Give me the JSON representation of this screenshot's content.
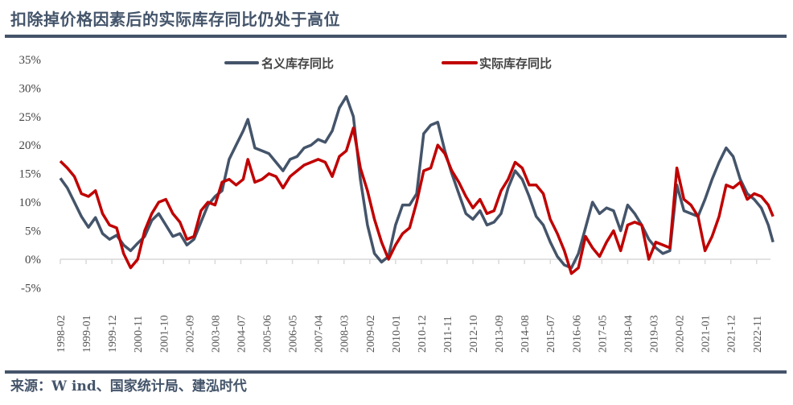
{
  "title": "扣除掉价格因素后的实际库存同比仍处于高位",
  "source": "来源：W ind、国家统计局、建泓时代",
  "chart_data": {
    "type": "line",
    "title": "扣除掉价格因素后的实际库存同比仍处于高位",
    "xlabel": "",
    "ylabel": "",
    "ylim": [
      -5,
      35
    ],
    "y_ticks": [
      35,
      30,
      25,
      20,
      15,
      10,
      5,
      0,
      -5
    ],
    "y_tick_labels": [
      "35%",
      "30%",
      "25%",
      "20%",
      "15%",
      "10%",
      "5%",
      "0%",
      "-5%"
    ],
    "x_tick_labels": [
      "1998-02",
      "1999-01",
      "1999-12",
      "2000-11",
      "2001-10",
      "2002-09",
      "2003-08",
      "2004-07",
      "2005-06",
      "2006-05",
      "2007-04",
      "2008-03",
      "2009-02",
      "2010-01",
      "2010-12",
      "2011-11",
      "2012-10",
      "2013-09",
      "2014-08",
      "2015-07",
      "2016-06",
      "2017-05",
      "2018-04",
      "2019-03",
      "2020-02",
      "2021-01",
      "2021-12",
      "2022-11"
    ],
    "x_start": "1998-02",
    "x_end": "2023-06",
    "legend_position": "top",
    "grid": false,
    "colors": {
      "nominal": "#44546a",
      "real": "#c00000",
      "axis": "#d9d9d9",
      "text": "#44546a"
    },
    "series": [
      {
        "name": "名义库存同比",
        "points": [
          [
            "1998-02",
            14.2
          ],
          [
            "1998-05",
            12.5
          ],
          [
            "1998-08",
            10.0
          ],
          [
            "1998-11",
            7.5
          ],
          [
            "1999-02",
            5.6
          ],
          [
            "1999-05",
            7.3
          ],
          [
            "1999-08",
            4.5
          ],
          [
            "1999-11",
            3.5
          ],
          [
            "2000-02",
            4.2
          ],
          [
            "2000-05",
            2.5
          ],
          [
            "2000-08",
            1.5
          ],
          [
            "2000-11",
            2.8
          ],
          [
            "2001-02",
            4.0
          ],
          [
            "2001-05",
            6.8
          ],
          [
            "2001-08",
            8.0
          ],
          [
            "2001-11",
            6.0
          ],
          [
            "2002-02",
            4.0
          ],
          [
            "2002-05",
            4.5
          ],
          [
            "2002-08",
            2.5
          ],
          [
            "2002-11",
            3.5
          ],
          [
            "2003-02",
            6.5
          ],
          [
            "2003-05",
            9.5
          ],
          [
            "2003-08",
            11.0
          ],
          [
            "2003-11",
            12.0
          ],
          [
            "2004-02",
            17.5
          ],
          [
            "2004-05",
            20.0
          ],
          [
            "2004-08",
            22.5
          ],
          [
            "2004-10",
            24.5
          ],
          [
            "2005-01",
            19.5
          ],
          [
            "2005-04",
            19.0
          ],
          [
            "2005-07",
            18.5
          ],
          [
            "2005-10",
            17.0
          ],
          [
            "2006-01",
            15.5
          ],
          [
            "2006-04",
            17.5
          ],
          [
            "2006-07",
            18.0
          ],
          [
            "2006-10",
            19.5
          ],
          [
            "2007-01",
            20.0
          ],
          [
            "2007-04",
            21.0
          ],
          [
            "2007-07",
            20.5
          ],
          [
            "2007-10",
            22.5
          ],
          [
            "2008-01",
            26.5
          ],
          [
            "2008-04",
            28.5
          ],
          [
            "2008-07",
            25.0
          ],
          [
            "2008-10",
            14.0
          ],
          [
            "2009-01",
            6.0
          ],
          [
            "2009-04",
            1.0
          ],
          [
            "2009-07",
            -0.5
          ],
          [
            "2009-10",
            0.5
          ],
          [
            "2010-01",
            6.0
          ],
          [
            "2010-04",
            9.5
          ],
          [
            "2010-07",
            9.5
          ],
          [
            "2010-10",
            11.5
          ],
          [
            "2011-01",
            22.0
          ],
          [
            "2011-04",
            23.5
          ],
          [
            "2011-07",
            24.0
          ],
          [
            "2011-10",
            19.0
          ],
          [
            "2012-01",
            15.0
          ],
          [
            "2012-04",
            11.5
          ],
          [
            "2012-07",
            8.0
          ],
          [
            "2012-10",
            7.0
          ],
          [
            "2013-01",
            8.5
          ],
          [
            "2013-04",
            6.0
          ],
          [
            "2013-07",
            6.5
          ],
          [
            "2013-10",
            8.0
          ],
          [
            "2014-01",
            12.5
          ],
          [
            "2014-04",
            15.5
          ],
          [
            "2014-07",
            14.0
          ],
          [
            "2014-10",
            11.0
          ],
          [
            "2015-01",
            7.5
          ],
          [
            "2015-04",
            6.0
          ],
          [
            "2015-07",
            3.0
          ],
          [
            "2015-10",
            0.5
          ],
          [
            "2016-01",
            -1.0
          ],
          [
            "2016-04",
            -1.5
          ],
          [
            "2016-07",
            1.0
          ],
          [
            "2016-10",
            5.5
          ],
          [
            "2017-01",
            10.0
          ],
          [
            "2017-04",
            8.0
          ],
          [
            "2017-07",
            9.0
          ],
          [
            "2017-10",
            8.5
          ],
          [
            "2018-01",
            5.0
          ],
          [
            "2018-04",
            9.5
          ],
          [
            "2018-07",
            8.0
          ],
          [
            "2018-10",
            6.0
          ],
          [
            "2019-01",
            3.5
          ],
          [
            "2019-04",
            2.0
          ],
          [
            "2019-07",
            1.0
          ],
          [
            "2019-10",
            1.5
          ],
          [
            "2020-01",
            13.0
          ],
          [
            "2020-04",
            8.5
          ],
          [
            "2020-07",
            8.0
          ],
          [
            "2020-10",
            7.5
          ],
          [
            "2021-01",
            10.5
          ],
          [
            "2021-04",
            14.0
          ],
          [
            "2021-07",
            17.0
          ],
          [
            "2021-10",
            19.5
          ],
          [
            "2022-01",
            18.0
          ],
          [
            "2022-04",
            14.0
          ],
          [
            "2022-07",
            11.5
          ],
          [
            "2022-10",
            10.5
          ],
          [
            "2023-01",
            9.0
          ],
          [
            "2023-04",
            6.0
          ],
          [
            "2023-06",
            3.0
          ]
        ]
      },
      {
        "name": "实际库存同比",
        "points": [
          [
            "1998-02",
            17.2
          ],
          [
            "1998-05",
            16.0
          ],
          [
            "1998-08",
            14.5
          ],
          [
            "1998-11",
            11.5
          ],
          [
            "1999-02",
            11.0
          ],
          [
            "1999-05",
            12.0
          ],
          [
            "1999-08",
            8.0
          ],
          [
            "1999-11",
            6.0
          ],
          [
            "2000-02",
            5.5
          ],
          [
            "2000-05",
            1.0
          ],
          [
            "2000-08",
            -1.5
          ],
          [
            "2000-11",
            0.0
          ],
          [
            "2001-02",
            5.0
          ],
          [
            "2001-05",
            8.0
          ],
          [
            "2001-08",
            10.0
          ],
          [
            "2001-11",
            10.5
          ],
          [
            "2002-02",
            8.0
          ],
          [
            "2002-05",
            6.5
          ],
          [
            "2002-08",
            3.5
          ],
          [
            "2002-11",
            4.0
          ],
          [
            "2003-02",
            8.5
          ],
          [
            "2003-05",
            10.0
          ],
          [
            "2003-08",
            9.5
          ],
          [
            "2003-11",
            13.5
          ],
          [
            "2004-02",
            14.0
          ],
          [
            "2004-05",
            13.0
          ],
          [
            "2004-08",
            14.0
          ],
          [
            "2004-10",
            17.5
          ],
          [
            "2005-01",
            13.5
          ],
          [
            "2005-04",
            14.0
          ],
          [
            "2005-07",
            15.0
          ],
          [
            "2005-10",
            14.5
          ],
          [
            "2006-01",
            12.5
          ],
          [
            "2006-04",
            14.5
          ],
          [
            "2006-07",
            15.5
          ],
          [
            "2006-10",
            16.5
          ],
          [
            "2007-01",
            17.0
          ],
          [
            "2007-04",
            17.5
          ],
          [
            "2007-07",
            17.0
          ],
          [
            "2007-10",
            14.5
          ],
          [
            "2008-01",
            18.0
          ],
          [
            "2008-04",
            19.0
          ],
          [
            "2008-07",
            23.0
          ],
          [
            "2008-10",
            16.0
          ],
          [
            "2009-01",
            12.0
          ],
          [
            "2009-04",
            7.0
          ],
          [
            "2009-07",
            3.0
          ],
          [
            "2009-10",
            0.0
          ],
          [
            "2010-01",
            2.5
          ],
          [
            "2010-04",
            4.5
          ],
          [
            "2010-07",
            5.5
          ],
          [
            "2010-10",
            10.0
          ],
          [
            "2011-01",
            15.5
          ],
          [
            "2011-04",
            16.0
          ],
          [
            "2011-07",
            20.0
          ],
          [
            "2011-10",
            18.5
          ],
          [
            "2012-01",
            15.5
          ],
          [
            "2012-04",
            13.5
          ],
          [
            "2012-07",
            11.0
          ],
          [
            "2012-10",
            9.0
          ],
          [
            "2013-01",
            10.5
          ],
          [
            "2013-04",
            8.0
          ],
          [
            "2013-07",
            8.5
          ],
          [
            "2013-10",
            12.0
          ],
          [
            "2014-01",
            14.0
          ],
          [
            "2014-04",
            17.0
          ],
          [
            "2014-07",
            16.0
          ],
          [
            "2014-10",
            13.0
          ],
          [
            "2015-01",
            13.0
          ],
          [
            "2015-04",
            11.5
          ],
          [
            "2015-07",
            7.0
          ],
          [
            "2015-10",
            4.5
          ],
          [
            "2016-01",
            1.5
          ],
          [
            "2016-04",
            -2.5
          ],
          [
            "2016-07",
            -1.5
          ],
          [
            "2016-10",
            4.0
          ],
          [
            "2017-01",
            2.0
          ],
          [
            "2017-04",
            0.5
          ],
          [
            "2017-07",
            3.0
          ],
          [
            "2017-10",
            5.0
          ],
          [
            "2018-01",
            1.5
          ],
          [
            "2018-04",
            6.0
          ],
          [
            "2018-07",
            6.5
          ],
          [
            "2018-10",
            6.0
          ],
          [
            "2019-01",
            0.0
          ],
          [
            "2019-04",
            3.0
          ],
          [
            "2019-07",
            2.5
          ],
          [
            "2019-10",
            2.0
          ],
          [
            "2020-01",
            16.0
          ],
          [
            "2020-04",
            10.5
          ],
          [
            "2020-07",
            9.5
          ],
          [
            "2020-10",
            7.5
          ],
          [
            "2021-01",
            1.5
          ],
          [
            "2021-04",
            4.0
          ],
          [
            "2021-07",
            7.5
          ],
          [
            "2021-10",
            13.0
          ],
          [
            "2022-01",
            12.5
          ],
          [
            "2022-04",
            13.5
          ],
          [
            "2022-07",
            10.5
          ],
          [
            "2022-10",
            11.5
          ],
          [
            "2023-01",
            11.0
          ],
          [
            "2023-04",
            9.5
          ],
          [
            "2023-06",
            7.5
          ]
        ]
      }
    ]
  }
}
